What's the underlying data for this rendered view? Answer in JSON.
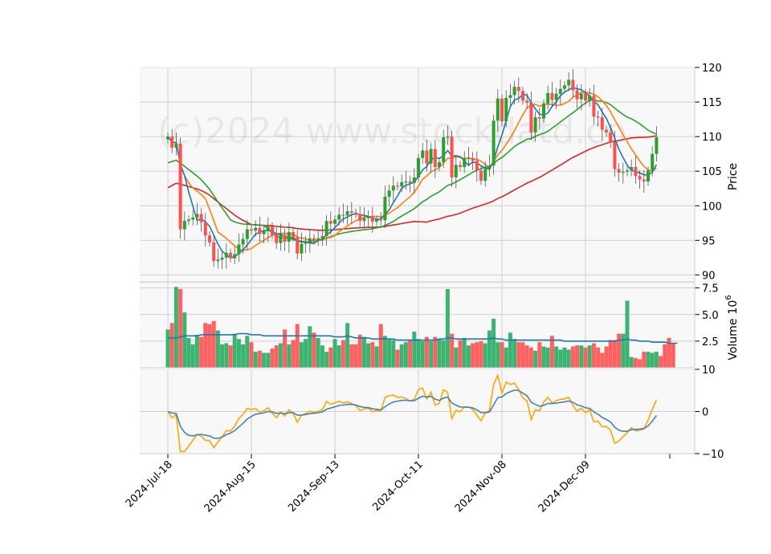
{
  "chart_data": {
    "type": "candlestick",
    "watermark": "(c)2024 www.stockdatd.co",
    "price_axis": {
      "label": "Price",
      "ticks": [
        90,
        95,
        100,
        105,
        110,
        115,
        120
      ],
      "range": [
        89,
        120
      ]
    },
    "volume_axis": {
      "label": "Volume",
      "exponent_label": "10",
      "exponent": "6",
      "ticks": [
        "2.5",
        "5.0",
        "7.5"
      ],
      "tick_values": [
        2.5,
        5.0,
        7.5
      ],
      "range": [
        0,
        8.0
      ]
    },
    "oscillator_axis": {
      "ticks": [
        "10",
        "0",
        "−10"
      ],
      "tick_values": [
        10,
        0,
        -10
      ],
      "range": [
        -10,
        10
      ]
    },
    "date_labels": [
      "2024-Jul-18",
      "2024-Aug-15",
      "2024-Sep-13",
      "2024-Oct-11",
      "2024-Nov-08",
      "2024-Dec-09"
    ],
    "date_label_index": [
      0,
      20,
      40,
      60,
      80,
      100
    ],
    "colors": {
      "up": "#2ca02c",
      "down": "#ff5050",
      "vol_up": "#3cb371",
      "vol_down": "#ff6060",
      "ma_short": "#1f77b4",
      "ma_mid": "#ff7f0e",
      "ma_long": "#2ca02c",
      "ma_longest": "#d62728",
      "vol_ma": "#1f77b4",
      "osc_a": "#4682b4",
      "osc_b": "#ffa500"
    },
    "closes": [
      110.0,
      108.4,
      109.0,
      96.6,
      97.8,
      98.0,
      98.3,
      98.8,
      97.6,
      95.7,
      94.7,
      92.0,
      92.2,
      92.5,
      93.2,
      92.4,
      93.0,
      94.4,
      95.2,
      96.6,
      96.4,
      96.8,
      95.9,
      96.3,
      97.0,
      95.8,
      94.6,
      95.8,
      94.8,
      96.2,
      95.4,
      93.1,
      94.5,
      94.8,
      95.3,
      95.0,
      95.3,
      95.6,
      97.8,
      97.4,
      98.0,
      98.7,
      98.6,
      99.2,
      99.0,
      98.8,
      97.8,
      98.2,
      98.5,
      97.7,
      98.0,
      97.9,
      101.3,
      102.2,
      102.9,
      102.8,
      103.4,
      103.5,
      103.3,
      104.1,
      106.9,
      108.0,
      106.1,
      108.2,
      105.6,
      106.3,
      109.9,
      110.0,
      104.1,
      105.9,
      105.6,
      106.8,
      106.9,
      106.5,
      105.1,
      103.6,
      105.3,
      105.8,
      112.3,
      115.5,
      112.2,
      115.6,
      116.0,
      117.2,
      116.6,
      115.2,
      114.9,
      110.6,
      112.8,
      112.6,
      114.8,
      116.3,
      115.3,
      116.2,
      116.9,
      117.4,
      118.2,
      116.7,
      115.4,
      116.2,
      115.2,
      115.9,
      112.9,
      112.8,
      111.0,
      110.6,
      109.2,
      105.3,
      104.8,
      104.9,
      105.1,
      105.6,
      104.3,
      103.8,
      103.5,
      105.1,
      107.5,
      109.9
    ],
    "volumes": [
      3.6,
      4.2,
      7.6,
      7.4,
      5.2,
      2.8,
      2.2,
      3.1,
      2.9,
      4.2,
      4.1,
      4.4,
      3.5,
      2.2,
      2.3,
      2.1,
      3.2,
      2.7,
      2.2,
      3.0,
      2.4,
      1.5,
      1.6,
      1.4,
      1.4,
      1.8,
      2.1,
      2.3,
      3.6,
      2.2,
      2.6,
      4.1,
      2.4,
      2.7,
      3.9,
      3.3,
      2.8,
      2.1,
      1.5,
      1.9,
      2.7,
      2.1,
      2.6,
      4.2,
      2.2,
      2.2,
      3.1,
      2.9,
      2.3,
      2.4,
      2.0,
      4.1,
      3.0,
      2.7,
      2.6,
      1.7,
      2.2,
      2.4,
      2.6,
      3.4,
      2.7,
      2.5,
      2.9,
      2.5,
      2.9,
      2.7,
      2.6,
      7.4,
      3.2,
      1.9,
      2.6,
      2.8,
      2.1,
      2.3,
      2.4,
      2.5,
      2.3,
      3.5,
      4.6,
      2.4,
      2.4,
      1.9,
      3.3,
      2.7,
      2.4,
      2.4,
      2.1,
      1.9,
      1.6,
      2.4,
      2.0,
      1.9,
      3.0,
      2.0,
      1.7,
      1.9,
      1.7,
      2.0,
      2.1,
      2.1,
      1.9,
      2.1,
      2.3,
      1.9,
      1.4,
      2.0,
      2.6,
      2.6,
      3.2,
      3.2,
      6.3,
      1.0,
      0.9,
      0.8,
      1.5,
      1.5,
      1.4,
      1.5,
      1.1,
      2.2,
      2.8,
      2.3
    ],
    "volume_ma": [
      2.8,
      2.8,
      2.8,
      2.9,
      3.0,
      3.0,
      3.0,
      3.0,
      3.1,
      3.1,
      3.1,
      3.1,
      3.1,
      3.1,
      3.1,
      3.1,
      3.1,
      3.2,
      3.2,
      3.2,
      3.1,
      3.1,
      3.1,
      3.0,
      3.0,
      3.0,
      3.0,
      3.0,
      3.0,
      3.0,
      3.0,
      3.0,
      3.0,
      3.0,
      3.0,
      3.0,
      3.0,
      3.0,
      3.0,
      3.0,
      2.9,
      2.9,
      2.9,
      3.0,
      2.9,
      2.8,
      2.8,
      2.8,
      2.8,
      2.7,
      2.7,
      2.7,
      2.7,
      2.7,
      2.7,
      2.6,
      2.6,
      2.6,
      2.6,
      2.6,
      2.6,
      2.6,
      2.6,
      2.6,
      2.6,
      2.7,
      2.7,
      2.8,
      2.8,
      2.7,
      2.7,
      2.7,
      2.7,
      2.7,
      2.7,
      2.7,
      2.7,
      2.7,
      2.8,
      2.7,
      2.7,
      2.6,
      2.6,
      2.6,
      2.6,
      2.6,
      2.6,
      2.6,
      2.6,
      2.6,
      2.6,
      2.6,
      2.6,
      2.6,
      2.6,
      2.5,
      2.5,
      2.5,
      2.5,
      2.5,
      2.5,
      2.5,
      2.5,
      2.5,
      2.5,
      2.5,
      2.5,
      2.5,
      2.6,
      2.6,
      2.7,
      2.6,
      2.6,
      2.5,
      2.5,
      2.5,
      2.4,
      2.4,
      2.4,
      2.4,
      2.3,
      2.3,
      2.3
    ]
  }
}
